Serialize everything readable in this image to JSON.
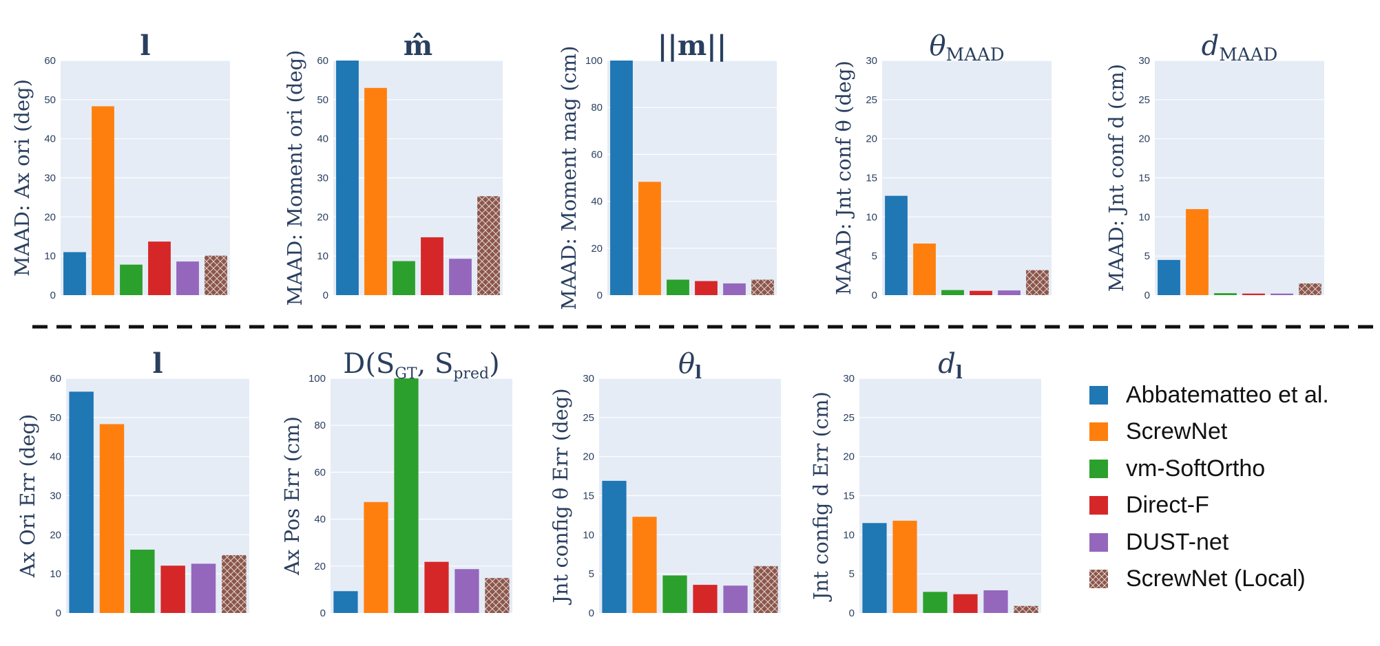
{
  "legend": {
    "items": [
      {
        "label": "Abbatematteo et al.",
        "color": "#1f77b4",
        "hatched": false
      },
      {
        "label": "ScrewNet",
        "color": "#ff7f0e",
        "hatched": false
      },
      {
        "label": "vm-SoftOrtho",
        "color": "#2ca02c",
        "hatched": false
      },
      {
        "label": "Direct-F",
        "color": "#d62728",
        "hatched": false
      },
      {
        "label": "DUST-net",
        "color": "#9467bd",
        "hatched": false
      },
      {
        "label": "ScrewNet (Local)",
        "color": "#8c564b",
        "hatched": true
      }
    ]
  },
  "chart_data": [
    {
      "type": "bar",
      "title": "l",
      "title_style": "bold",
      "ylabel": "MAAD: Ax ori (deg)",
      "ylim": [
        0,
        60
      ],
      "yticks": [
        0,
        10,
        20,
        30,
        40,
        50,
        60
      ],
      "categories": [
        "Abbatematteo et al.",
        "ScrewNet",
        "vm-SoftOrtho",
        "Direct-F",
        "DUST-net",
        "ScrewNet (Local)"
      ],
      "values": [
        11,
        48.3,
        7.8,
        13.7,
        8.6,
        10.1
      ]
    },
    {
      "type": "bar",
      "title": "m̂",
      "title_style": "bold",
      "ylabel": "MAAD: Moment ori (deg)",
      "ylim": [
        0,
        60
      ],
      "yticks": [
        0,
        10,
        20,
        30,
        40,
        50,
        60
      ],
      "categories": [
        "Abbatematteo et al.",
        "ScrewNet",
        "vm-SoftOrtho",
        "Direct-F",
        "DUST-net",
        "ScrewNet (Local)"
      ],
      "values": [
        60,
        53,
        8.7,
        14.8,
        9.3,
        25.3
      ]
    },
    {
      "type": "bar",
      "title": "||m||",
      "title_style": "bold",
      "ylabel": "MAAD: Moment mag (cm)",
      "ylim": [
        0,
        100
      ],
      "yticks": [
        0,
        20,
        40,
        60,
        80,
        100
      ],
      "categories": [
        "Abbatematteo et al.",
        "ScrewNet",
        "vm-SoftOrtho",
        "Direct-F",
        "DUST-net",
        "ScrewNet (Local)"
      ],
      "values": [
        100,
        48.3,
        6.6,
        6,
        5,
        6.6
      ]
    },
    {
      "type": "bar",
      "title": "θ",
      "title_sub": "MAAD",
      "ylabel": "MAAD: Jnt conf θ (deg)",
      "ylim": [
        0,
        30
      ],
      "yticks": [
        0,
        5,
        10,
        15,
        20,
        25,
        30
      ],
      "categories": [
        "Abbatematteo et al.",
        "ScrewNet",
        "vm-SoftOrtho",
        "Direct-F",
        "DUST-net",
        "ScrewNet (Local)"
      ],
      "values": [
        12.7,
        6.6,
        0.65,
        0.55,
        0.6,
        3.2
      ]
    },
    {
      "type": "bar",
      "title": "d",
      "title_sub": "MAAD",
      "ylabel": "MAAD: Jnt conf d (cm)",
      "ylim": [
        0,
        30
      ],
      "yticks": [
        0,
        5,
        10,
        15,
        20,
        25,
        30
      ],
      "categories": [
        "Abbatematteo et al.",
        "ScrewNet",
        "vm-SoftOrtho",
        "Direct-F",
        "DUST-net",
        "ScrewNet (Local)"
      ],
      "values": [
        4.5,
        11,
        0.25,
        0.2,
        0.2,
        1.5
      ]
    },
    {
      "type": "bar",
      "title": "l",
      "title_style": "bold",
      "ylabel": "Ax Ori Err (deg)",
      "ylim": [
        0,
        60
      ],
      "yticks": [
        0,
        10,
        20,
        30,
        40,
        50,
        60
      ],
      "categories": [
        "Abbatematteo et al.",
        "ScrewNet",
        "vm-SoftOrtho",
        "Direct-F",
        "DUST-net",
        "ScrewNet (Local)"
      ],
      "values": [
        56.6,
        48.3,
        16.2,
        12.1,
        12.6,
        14.8
      ]
    },
    {
      "type": "bar",
      "title": "D(S",
      "title_parts": [
        "GT",
        ", S",
        "pred",
        ")"
      ],
      "ylabel": "Ax Pos Err (cm)",
      "ylim": [
        0,
        100
      ],
      "yticks": [
        0,
        20,
        40,
        60,
        80,
        100
      ],
      "categories": [
        "Abbatematteo et al.",
        "ScrewNet",
        "vm-SoftOrtho",
        "Direct-F",
        "DUST-net",
        "ScrewNet (Local)"
      ],
      "values": [
        9.3,
        47.3,
        100,
        21.8,
        18.7,
        14.9
      ]
    },
    {
      "type": "bar",
      "title": "θ",
      "title_sub": "l",
      "ylabel": "Jnt config θ Err (deg)",
      "ylim": [
        0,
        30
      ],
      "yticks": [
        0,
        5,
        10,
        15,
        20,
        25,
        30
      ],
      "categories": [
        "Abbatematteo et al.",
        "ScrewNet",
        "vm-SoftOrtho",
        "Direct-F",
        "DUST-net",
        "ScrewNet (Local)"
      ],
      "values": [
        16.9,
        12.3,
        4.8,
        3.6,
        3.5,
        6
      ]
    },
    {
      "type": "bar",
      "title": "d",
      "title_sub": "l",
      "ylabel": "Jnt config d Err (cm)",
      "ylim": [
        0,
        30
      ],
      "yticks": [
        0,
        5,
        10,
        15,
        20,
        25,
        30
      ],
      "categories": [
        "Abbatematteo et al.",
        "ScrewNet",
        "vm-SoftOrtho",
        "Direct-F",
        "DUST-net",
        "ScrewNet (Local)"
      ],
      "values": [
        11.5,
        11.8,
        2.7,
        2.4,
        2.9,
        0.9
      ]
    }
  ]
}
